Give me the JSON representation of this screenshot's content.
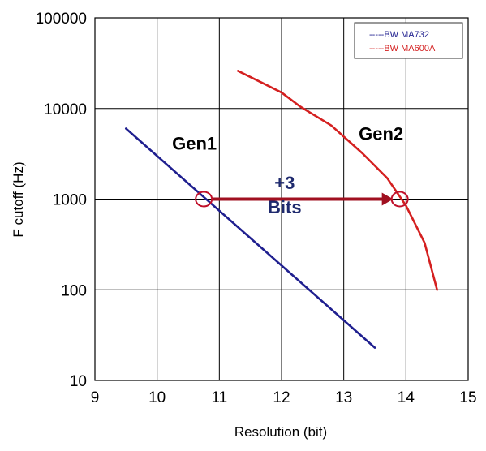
{
  "chart_data": {
    "type": "line",
    "title": "",
    "xlabel": "Resolution (bit)",
    "ylabel": "F cutoff (Hz)",
    "xlim": [
      9,
      15
    ],
    "ylim": [
      10,
      100000
    ],
    "yscale": "log",
    "grid": true,
    "x_ticks": [
      "9",
      "10",
      "11",
      "12",
      "13",
      "14",
      "15"
    ],
    "y_ticks": [
      "10",
      "100",
      "1000",
      "10000",
      "100000"
    ],
    "legend_position": "top-right",
    "series": [
      {
        "name": "BW MA732",
        "legend_label": "-----BW MA732",
        "color": "#1f1f8f",
        "x": [
          9.5,
          13.5
        ],
        "y": [
          6000,
          23
        ]
      },
      {
        "name": "BW MA600A",
        "legend_label": "-----BW MA600A",
        "color": "#d42020",
        "x": [
          11.3,
          11.7,
          12.0,
          12.3,
          12.8,
          13.3,
          13.7,
          14.0,
          14.3,
          14.5
        ],
        "y": [
          26000,
          19000,
          15000,
          10500,
          6500,
          3200,
          1700,
          850,
          330,
          100
        ]
      }
    ],
    "annotations": [
      {
        "text": "Gen1",
        "x": 10.6,
        "y": 3500,
        "color": "#000000"
      },
      {
        "text": "Gen2",
        "x": 13.6,
        "y": 4500,
        "color": "#000000"
      },
      {
        "text": "+3",
        "x": 12.05,
        "y": 1300,
        "color": "#1f2a6e"
      },
      {
        "text": "Bits",
        "x": 12.05,
        "y": 700,
        "color": "#1f2a6e"
      }
    ],
    "markers": [
      {
        "shape": "circle",
        "x": 10.75,
        "y": 1000,
        "color": "#c0102a"
      },
      {
        "shape": "circle",
        "x": 13.9,
        "y": 1000,
        "color": "#c0102a"
      }
    ],
    "arrow": {
      "from": [
        10.75,
        1000
      ],
      "to": [
        13.9,
        1000
      ],
      "color": "#a01020"
    }
  }
}
